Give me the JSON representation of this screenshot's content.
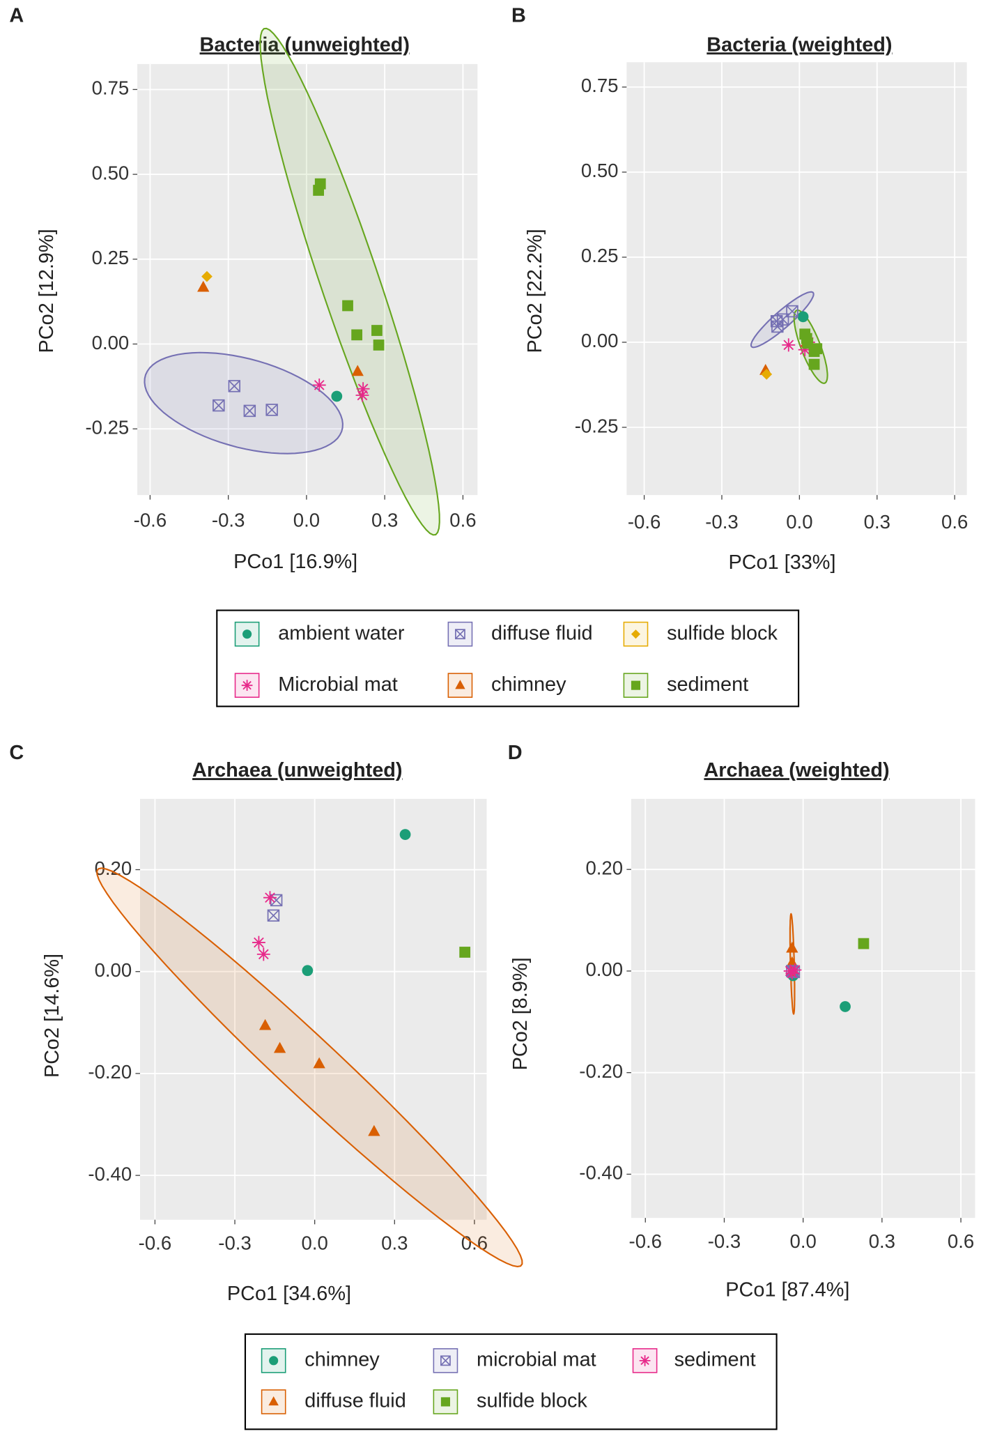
{
  "chart_data": [
    {
      "type": "scatter",
      "panel_label": "A",
      "title": "Bacteria (unweighted)",
      "x_label": "PCo1 [16.9%]",
      "y_label": "PCo2 [12.9%]",
      "xlim": [
        -0.649,
        0.656
      ],
      "ylim": [
        -0.445,
        0.825
      ],
      "xticks": [
        -0.6,
        -0.3,
        {
          "value": 0,
          "label": "0.0"
        },
        0.3,
        0.6
      ],
      "yticks": [
        -0.25,
        {
          "value": 0,
          "label": "0.00"
        },
        0.25,
        {
          "value": 0.5,
          "label": "0.50"
        },
        0.75
      ],
      "grid": true,
      "legend": "bottom",
      "series": [
        {
          "name": "ambient water",
          "color": "#1b9e77",
          "shape": "circle",
          "x": [
            0.116
          ],
          "y": [
            -0.154
          ]
        },
        {
          "name": "Microbial mat",
          "color": "#e7298a",
          "shape": "asterisk",
          "x": [
            0.049,
            0.217,
            0.214
          ],
          "y": [
            -0.121,
            -0.132,
            -0.151
          ]
        },
        {
          "name": "diffuse fluid",
          "color": "#7570b3",
          "shape": "square-x",
          "x": [
            -0.277,
            -0.337,
            -0.218,
            -0.133
          ],
          "y": [
            -0.124,
            -0.181,
            -0.197,
            -0.194
          ],
          "ellipse": true
        },
        {
          "name": "chimney",
          "color": "#d95f02",
          "shape": "triangle",
          "x": [
            -0.396,
            0.196
          ],
          "y": [
            0.167,
            -0.081
          ]
        },
        {
          "name": "sulfide block",
          "color": "#e6ab02",
          "shape": "diamond",
          "x": [
            -0.382
          ],
          "y": [
            0.199
          ]
        },
        {
          "name": "sediment",
          "color": "#66a61e",
          "shape": "square",
          "x": [
            0.053,
            0.046,
            0.158,
            0.193,
            0.27,
            0.277
          ],
          "y": [
            0.472,
            0.453,
            0.113,
            0.027,
            0.04,
            -0.003
          ],
          "ellipse": true
        }
      ]
    },
    {
      "type": "scatter",
      "panel_label": "B",
      "title": "Bacteria (weighted)",
      "x_label": "PCo1 [33%]",
      "y_label": "PCo2 [22.2%]",
      "xlim": [
        -0.668,
        0.647
      ],
      "ylim": [
        -0.449,
        0.823
      ],
      "xticks": [
        -0.6,
        -0.3,
        {
          "value": 0,
          "label": "0.0"
        },
        0.3,
        0.6
      ],
      "yticks": [
        -0.25,
        {
          "value": 0,
          "label": "0.00"
        },
        0.25,
        {
          "value": 0.5,
          "label": "0.50"
        },
        0.75
      ],
      "grid": true,
      "series": [
        {
          "color": "#1b9e77",
          "shape": "circle",
          "x": [
            0.014
          ],
          "y": [
            0.075
          ]
        },
        {
          "color": "#e7298a",
          "shape": "asterisk",
          "x": [
            -0.042,
            0.021,
            0.035
          ],
          "y": [
            -0.008,
            -0.022,
            0.0
          ]
        },
        {
          "color": "#7570b3",
          "shape": "square-x",
          "x": [
            -0.085,
            -0.064,
            -0.028,
            -0.088
          ],
          "y": [
            0.046,
            0.067,
            0.091,
            0.062
          ],
          "ellipse": true
        },
        {
          "color": "#d95f02",
          "shape": "triangle",
          "x": [
            -0.131,
            0.028
          ],
          "y": [
            -0.083,
            0.0
          ]
        },
        {
          "color": "#e6ab02",
          "shape": "diamond",
          "x": [
            -0.127
          ],
          "y": [
            -0.094
          ]
        },
        {
          "color": "#66a61e",
          "shape": "square",
          "x": [
            0.021,
            0.032,
            0.057,
            0.067,
            0.057,
            0.028
          ],
          "y": [
            0.024,
            -0.003,
            -0.027,
            -0.019,
            -0.065,
            0.011
          ],
          "ellipse": true
        }
      ]
    },
    {
      "type": "scatter",
      "panel_label": "C",
      "title": "Archaea (unweighted)",
      "x_label": "PCo1 [34.6%]",
      "y_label": "PCo2 [14.6%]",
      "xlim": [
        -0.656,
        0.646
      ],
      "ylim": [
        -0.487,
        0.339
      ],
      "xticks": [
        -0.6,
        -0.3,
        {
          "value": 0,
          "label": "0.0"
        },
        0.3,
        0.6
      ],
      "yticks": [
        {
          "value": -0.4,
          "label": "-0.40"
        },
        {
          "value": -0.2,
          "label": "-0.20"
        },
        {
          "value": 0,
          "label": "0.00"
        },
        {
          "value": 0.2,
          "label": "0.20"
        }
      ],
      "grid": true,
      "legend": "bottom",
      "series": [
        {
          "name": "chimney",
          "color": "#1b9e77",
          "shape": "circle",
          "x": [
            0.34,
            -0.027
          ],
          "y": [
            0.269,
            0.002
          ]
        },
        {
          "name": "diffuse fluid",
          "color": "#d95f02",
          "shape": "triangle",
          "x": [
            -0.186,
            -0.131,
            0.017,
            0.223
          ],
          "y": [
            -0.106,
            -0.151,
            -0.181,
            -0.314
          ],
          "ellipse": true
        },
        {
          "name": "microbial mat",
          "color": "#7570b3",
          "shape": "square-x",
          "x": [
            -0.144,
            -0.155
          ],
          "y": [
            0.14,
            0.11
          ]
        },
        {
          "name": "sulfide block",
          "color": "#66a61e",
          "shape": "square",
          "x": [
            0.564
          ],
          "y": [
            0.038
          ]
        },
        {
          "name": "sediment",
          "color": "#e7298a",
          "shape": "asterisk",
          "x": [
            -0.168,
            -0.21,
            -0.192
          ],
          "y": [
            0.145,
            0.057,
            0.034
          ]
        }
      ]
    },
    {
      "type": "scatter",
      "panel_label": "D",
      "title": "Archaea (weighted)",
      "x_label": "PCo1 [87.4%]",
      "y_label": "PCo2 [8.9%]",
      "xlim": [
        -0.654,
        0.654
      ],
      "ylim": [
        -0.486,
        0.339
      ],
      "xticks": [
        -0.6,
        -0.3,
        {
          "value": 0,
          "label": "0.0"
        },
        0.3,
        0.6
      ],
      "yticks": [
        {
          "value": -0.4,
          "label": "-0.40"
        },
        {
          "value": -0.2,
          "label": "-0.20"
        },
        {
          "value": 0,
          "label": "0.00"
        },
        {
          "value": 0.2,
          "label": "0.20"
        }
      ],
      "grid": true,
      "series": [
        {
          "color": "#1b9e77",
          "shape": "circle",
          "x": [
            0.16,
            -0.038
          ],
          "y": [
            -0.07,
            -0.009
          ]
        },
        {
          "color": "#d95f02",
          "shape": "triangle",
          "x": [
            -0.042,
            -0.042,
            -0.038,
            -0.042
          ],
          "y": [
            0.045,
            0.0,
            -0.005,
            0.016
          ],
          "ellipse": true
        },
        {
          "color": "#7570b3",
          "shape": "square-x",
          "x": [
            -0.042,
            -0.035
          ],
          "y": [
            0.0,
            -0.002
          ]
        },
        {
          "color": "#66a61e",
          "shape": "square",
          "x": [
            0.23
          ],
          "y": [
            0.054
          ]
        },
        {
          "color": "#e7298a",
          "shape": "asterisk",
          "x": [
            -0.049,
            -0.031,
            -0.042
          ],
          "y": [
            0.0,
            0.002,
            -0.004
          ]
        }
      ]
    }
  ]
}
